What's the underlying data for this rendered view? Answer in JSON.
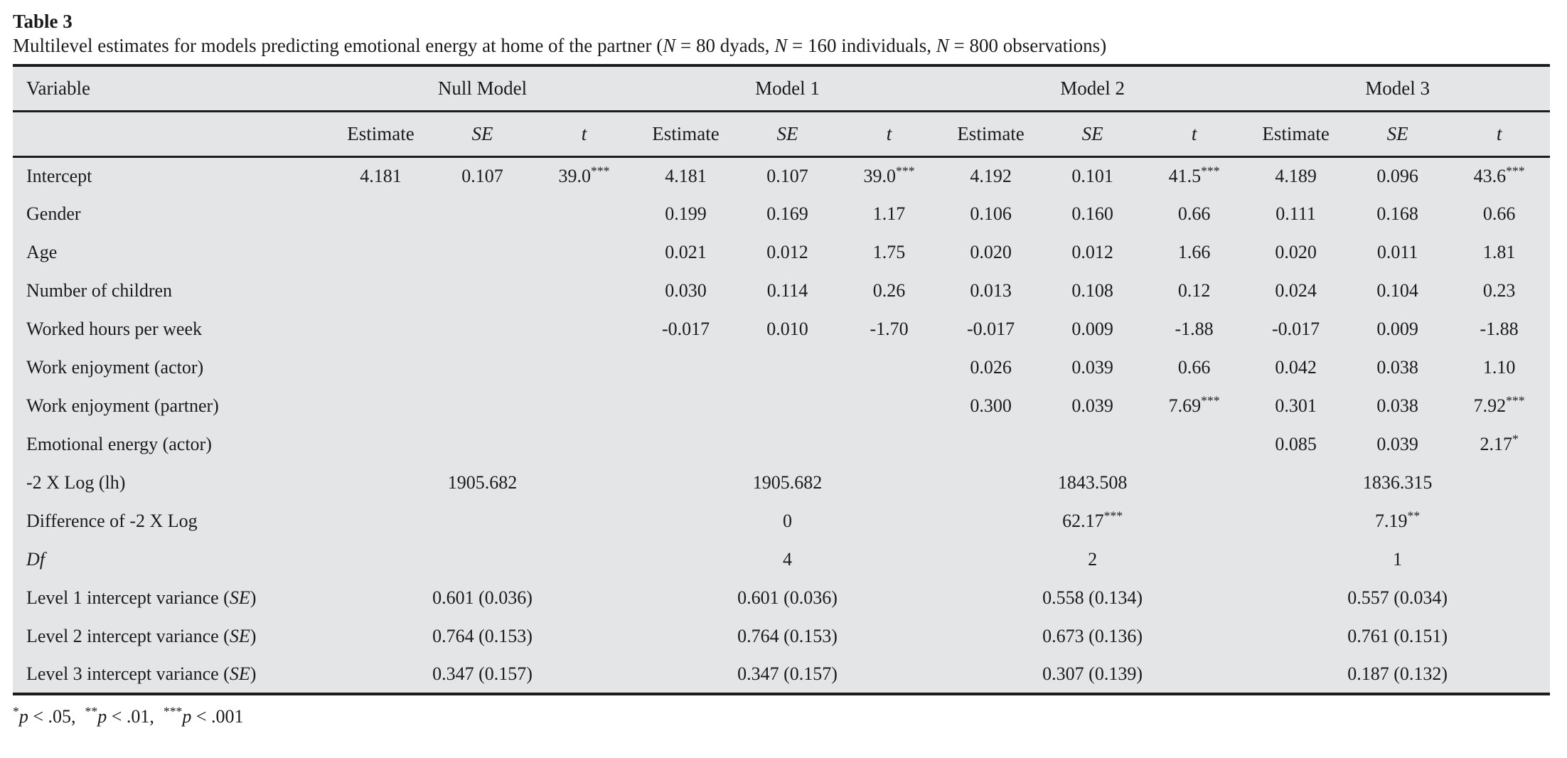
{
  "page": {
    "title": "Table 3",
    "caption_segments": [
      {
        "t": "Multilevel estimates for models predicting emotional energy at home of the partner ("
      },
      {
        "t": "N",
        "i": true
      },
      {
        "t": " = 80 dyads, "
      },
      {
        "t": "N",
        "i": true
      },
      {
        "t": " = 160 individuals, "
      },
      {
        "t": "N",
        "i": true
      },
      {
        "t": " = 800 observations)"
      }
    ],
    "footnote_segments": [
      {
        "t": "*",
        "sup": true
      },
      {
        "t": "p",
        "i": true
      },
      {
        "t": " < .05,  "
      },
      {
        "t": "**",
        "sup": true
      },
      {
        "t": "p",
        "i": true
      },
      {
        "t": " < .01,  "
      },
      {
        "t": "***",
        "sup": true
      },
      {
        "t": "p",
        "i": true
      },
      {
        "t": " < .001"
      }
    ]
  },
  "colors": {
    "page_background": "#ffffff",
    "table_background": "#e4e5e7",
    "rule": "#1c1c1c",
    "text": "#1b1b1b"
  },
  "table": {
    "variable_header": "Variable",
    "model_headers": [
      "Null Model",
      "Model 1",
      "Model 2",
      "Model 3"
    ],
    "stat_headers": [
      {
        "label": "Estimate",
        "italic": false
      },
      {
        "label": "SE",
        "italic": true
      },
      {
        "label": "t",
        "italic": true
      }
    ],
    "rows": [
      {
        "type": "cells",
        "label_segments": [
          {
            "t": "Intercept"
          }
        ],
        "cells": [
          "4.181",
          "0.107",
          "39.0***",
          "4.181",
          "0.107",
          "39.0***",
          "4.192",
          "0.101",
          "41.5***",
          "4.189",
          "0.096",
          "43.6***"
        ]
      },
      {
        "type": "cells",
        "label_segments": [
          {
            "t": "Gender"
          }
        ],
        "cells": [
          "",
          "",
          "",
          "0.199",
          "0.169",
          "1.17",
          "0.106",
          "0.160",
          "0.66",
          "0.111",
          "0.168",
          "0.66"
        ]
      },
      {
        "type": "cells",
        "label_segments": [
          {
            "t": "Age"
          }
        ],
        "cells": [
          "",
          "",
          "",
          "0.021",
          "0.012",
          "1.75",
          "0.020",
          "0.012",
          "1.66",
          "0.020",
          "0.011",
          "1.81"
        ]
      },
      {
        "type": "cells",
        "label_segments": [
          {
            "t": "Number of children"
          }
        ],
        "cells": [
          "",
          "",
          "",
          "0.030",
          "0.114",
          "0.26",
          "0.013",
          "0.108",
          "0.12",
          "0.024",
          "0.104",
          "0.23"
        ]
      },
      {
        "type": "cells",
        "label_segments": [
          {
            "t": "Worked hours per week"
          }
        ],
        "cells": [
          "",
          "",
          "",
          "-0.017",
          "0.010",
          "-1.70",
          "-0.017",
          "0.009",
          "-1.88",
          "-0.017",
          "0.009",
          "-1.88"
        ]
      },
      {
        "type": "cells",
        "label_segments": [
          {
            "t": "Work enjoyment (actor)"
          }
        ],
        "cells": [
          "",
          "",
          "",
          "",
          "",
          "",
          "0.026",
          "0.039",
          "0.66",
          "0.042",
          "0.038",
          "1.10"
        ]
      },
      {
        "type": "cells",
        "label_segments": [
          {
            "t": "Work enjoyment (partner)"
          }
        ],
        "cells": [
          "",
          "",
          "",
          "",
          "",
          "",
          "0.300",
          "0.039",
          "7.69***",
          "0.301",
          "0.038",
          "7.92***"
        ]
      },
      {
        "type": "cells",
        "label_segments": [
          {
            "t": "Emotional energy (actor)"
          }
        ],
        "cells": [
          "",
          "",
          "",
          "",
          "",
          "",
          "",
          "",
          "",
          "0.085",
          "0.039",
          "2.17*"
        ]
      },
      {
        "type": "span",
        "label_segments": [
          {
            "t": "-2 X Log (lh)"
          }
        ],
        "group_cells": [
          "1905.682",
          "1905.682",
          "1843.508",
          "1836.315"
        ]
      },
      {
        "type": "span",
        "label_segments": [
          {
            "t": "Difference of -2 X Log"
          }
        ],
        "group_cells": [
          "",
          "0",
          "62.17***",
          "7.19**"
        ]
      },
      {
        "type": "span",
        "label_segments": [
          {
            "t": "Df",
            "i": true
          }
        ],
        "group_cells": [
          "",
          "4",
          "2",
          "1"
        ]
      },
      {
        "type": "span",
        "label_segments": [
          {
            "t": "Level 1 intercept variance ("
          },
          {
            "t": "SE",
            "i": true
          },
          {
            "t": ")"
          }
        ],
        "group_cells": [
          "0.601 (0.036)",
          "0.601 (0.036)",
          "0.558 (0.134)",
          "0.557 (0.034)"
        ]
      },
      {
        "type": "span",
        "label_segments": [
          {
            "t": "Level 2 intercept variance ("
          },
          {
            "t": "SE",
            "i": true
          },
          {
            "t": ")"
          }
        ],
        "group_cells": [
          "0.764 (0.153)",
          "0.764 (0.153)",
          "0.673 (0.136)",
          "0.761 (0.151)"
        ]
      },
      {
        "type": "span",
        "label_segments": [
          {
            "t": "Level 3 intercept variance ("
          },
          {
            "t": "SE",
            "i": true
          },
          {
            "t": ")"
          }
        ],
        "group_cells": [
          "0.347 (0.157)",
          "0.347 (0.157)",
          "0.307 (0.139)",
          "0.187 (0.132)"
        ]
      }
    ]
  }
}
